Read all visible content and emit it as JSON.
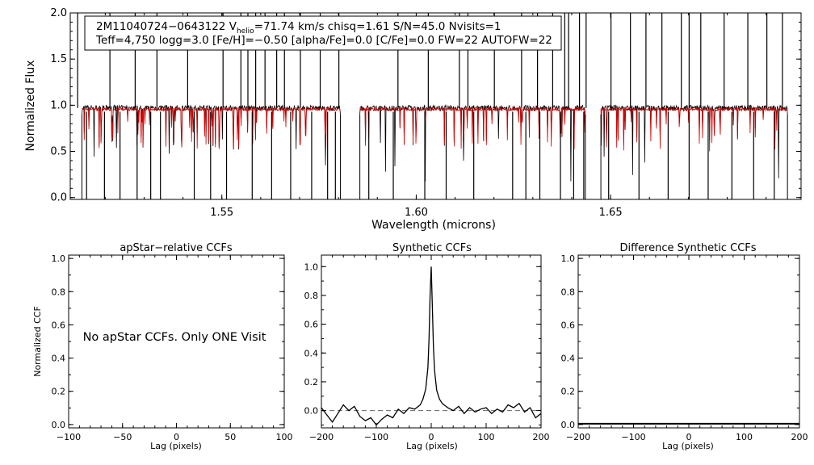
{
  "colors": {
    "observed": "#000000",
    "model": "#d40000",
    "zero_line": "#666666"
  },
  "info_box": {
    "star_id": "2M11040724−0643122",
    "v_symbol": "V",
    "v_subscript": "helio",
    "line1_rest": "=71.74 km/s  chisq=1.61  S/N=45.0  Nvisits=1",
    "line2": "Teff=4,750 logg=3.0 [Fe/H]=−0.50 [alpha/Fe]=0.0 [C/Fe]=0.0 FW=22 AUTOFW=22"
  },
  "no_ccf_message": "No apStar CCFs.  Only ONE Visit",
  "chart_data": [
    {
      "type": "line",
      "id": "spectrum",
      "title": "",
      "xlabel": "Wavelength (microns)",
      "ylabel": "Normalized Flux",
      "xlim": [
        1.511,
        1.699
      ],
      "ylim": [
        -0.02,
        2.0
      ],
      "xticks": [
        1.55,
        1.6,
        1.65
      ],
      "xtick_labels": [
        "1.55",
        "1.60",
        "1.65"
      ],
      "yticks": [
        0.0,
        0.5,
        1.0,
        1.5,
        2.0
      ],
      "ytick_labels": [
        "0.0",
        "0.5",
        "1.0",
        "1.5",
        "2.0"
      ],
      "chip_ranges": [
        [
          1.514,
          1.5805
        ],
        [
          1.5855,
          1.6435
        ],
        [
          1.6475,
          1.6955
        ]
      ],
      "series": [
        {
          "name": "observed",
          "continuum": 0.97,
          "noise": 0.03
        },
        {
          "name": "model",
          "continuum": 0.955,
          "noise": 0.015
        }
      ],
      "spike_wavelengths": [
        1.5129,
        1.5212,
        1.5277,
        1.5333,
        1.5412,
        1.5503,
        1.5549,
        1.5567,
        1.5587,
        1.5611,
        1.5641,
        1.5661,
        1.5702,
        1.5753,
        1.5801,
        1.5953,
        1.6031,
        1.6111,
        1.6133,
        1.6201,
        1.6271,
        1.6312,
        1.6351,
        1.6382,
        1.6392,
        1.642,
        1.6437,
        1.6501,
        1.6551,
        1.6591,
        1.6632,
        1.6682,
        1.6702,
        1.6732,
        1.6792,
        1.6853,
        1.6902,
        1.6942
      ],
      "dip_wavelengths": [
        1.5152,
        1.5198,
        1.5238,
        1.5282,
        1.5317,
        1.5342,
        1.5429,
        1.5471,
        1.5512,
        1.5578,
        1.5628,
        1.5677,
        1.5731,
        1.5772,
        1.5792,
        1.5878,
        1.5941,
        1.6022,
        1.6077,
        1.6148,
        1.6248,
        1.6282,
        1.6318,
        1.6371,
        1.6405,
        1.6431,
        1.6495,
        1.6573,
        1.6648,
        1.6702,
        1.6751,
        1.6812,
        1.6868,
        1.6921
      ]
    },
    {
      "type": "line",
      "id": "apstar_ccf",
      "title": "apStar−relative CCFs",
      "xlabel": "Lag (pixels)",
      "ylabel": "Normalized CCF",
      "xlim": [
        -100,
        100
      ],
      "ylim": [
        -0.02,
        1.02
      ],
      "xticks": [
        -100,
        -50,
        0,
        50,
        100
      ],
      "xtick_labels": [
        "−100",
        "−50",
        "0",
        "50",
        "100"
      ],
      "yticks": [
        0.0,
        0.2,
        0.4,
        0.6,
        0.8,
        1.0
      ],
      "ytick_labels": [
        "0.0",
        "0.2",
        "0.4",
        "0.6",
        "0.8",
        "1.0"
      ],
      "series": []
    },
    {
      "type": "line",
      "id": "synthetic_ccf",
      "title": "Synthetic CCFs",
      "xlabel": "Lag (pixels)",
      "ylabel": "",
      "xlim": [
        -200,
        200
      ],
      "ylim": [
        -0.12,
        1.08
      ],
      "xticks": [
        -200,
        -100,
        0,
        100,
        200
      ],
      "xtick_labels": [
        "−200",
        "−100",
        "0",
        "100",
        "200"
      ],
      "yticks": [
        0.0,
        0.2,
        0.4,
        0.6,
        0.8,
        1.0
      ],
      "ytick_labels": [
        "0.0",
        "0.2",
        "0.4",
        "0.6",
        "0.8",
        "1.0"
      ],
      "reference_line": 0.0,
      "series": [
        {
          "name": "ccf",
          "x": [
            -200,
            -190,
            -180,
            -170,
            -160,
            -150,
            -140,
            -130,
            -120,
            -110,
            -100,
            -90,
            -80,
            -70,
            -60,
            -50,
            -40,
            -30,
            -20,
            -15,
            -10,
            -6,
            -4,
            -2,
            0,
            2,
            4,
            6,
            10,
            15,
            20,
            30,
            40,
            50,
            60,
            70,
            80,
            90,
            100,
            110,
            120,
            130,
            140,
            150,
            160,
            170,
            180,
            190,
            200
          ],
          "y": [
            0.02,
            -0.03,
            -0.08,
            -0.02,
            0.04,
            0.0,
            0.03,
            -0.04,
            -0.07,
            -0.05,
            -0.1,
            -0.06,
            -0.03,
            -0.05,
            0.01,
            -0.02,
            0.02,
            0.01,
            0.04,
            0.08,
            0.15,
            0.3,
            0.5,
            0.8,
            1.0,
            0.72,
            0.45,
            0.28,
            0.14,
            0.08,
            0.05,
            0.02,
            0.0,
            0.03,
            -0.02,
            0.02,
            -0.01,
            0.01,
            0.02,
            -0.02,
            0.01,
            -0.01,
            0.04,
            0.02,
            0.05,
            -0.01,
            0.02,
            -0.05,
            -0.02
          ]
        }
      ]
    },
    {
      "type": "line",
      "id": "difference_ccf",
      "title": "Difference Synthetic CCFs",
      "xlabel": "Lag (pixels)",
      "ylabel": "",
      "xlim": [
        -200,
        200
      ],
      "ylim": [
        -0.02,
        1.02
      ],
      "xticks": [
        -200,
        -100,
        0,
        100,
        200
      ],
      "xtick_labels": [
        "−200",
        "−100",
        "0",
        "100",
        "200"
      ],
      "yticks": [
        0.0,
        0.2,
        0.4,
        0.6,
        0.8,
        1.0
      ],
      "ytick_labels": [
        "0.0",
        "0.2",
        "0.4",
        "0.6",
        "0.8",
        "1.0"
      ],
      "series": [
        {
          "name": "difference",
          "x": [
            -200,
            200
          ],
          "y": [
            0.0,
            0.0
          ]
        }
      ]
    }
  ]
}
